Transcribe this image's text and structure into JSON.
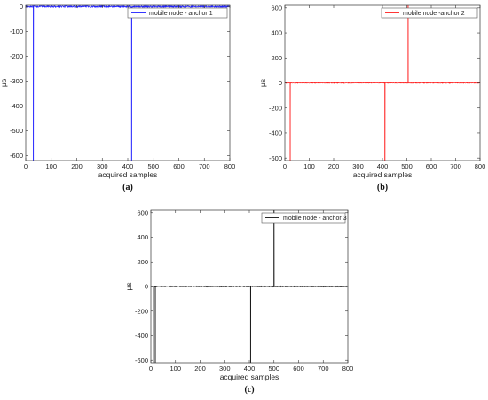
{
  "chart_data": [
    {
      "type": "line",
      "caption": "(a)",
      "xlabel": "acquired samples",
      "ylabel": "μs",
      "xlim": [
        0,
        800
      ],
      "ylim": [
        -620,
        5
      ],
      "xticks": [
        0,
        100,
        200,
        300,
        400,
        500,
        600,
        700,
        800
      ],
      "yticks": [
        0,
        -100,
        -200,
        -300,
        -400,
        -500,
        -600
      ],
      "legend_position": "top-right",
      "grid": false,
      "series": [
        {
          "name": "mobile node - anchor 1",
          "color": "#2020ff",
          "baseline": 0,
          "noise_amplitude": 3,
          "spikes": [
            {
              "x": 30,
              "y": -620
            },
            {
              "x": 415,
              "y": -620
            }
          ]
        }
      ]
    },
    {
      "type": "line",
      "caption": "(b)",
      "xlabel": "acquired samples",
      "ylabel": "μs",
      "xlim": [
        0,
        800
      ],
      "ylim": [
        -620,
        620
      ],
      "xticks": [
        0,
        100,
        200,
        300,
        400,
        500,
        600,
        700,
        800
      ],
      "yticks": [
        600,
        400,
        200,
        0,
        -200,
        -400,
        -600
      ],
      "legend_position": "top-right",
      "grid": false,
      "series": [
        {
          "name": "mobile node -anchor 2",
          "color": "#ff2020",
          "baseline": 0,
          "noise_amplitude": 3,
          "spikes": [
            {
              "x": 22,
              "y": -620
            },
            {
              "x": 410,
              "y": -620
            },
            {
              "x": 505,
              "y": 620
            }
          ]
        }
      ]
    },
    {
      "type": "line",
      "caption": "(c)",
      "xlabel": "acquired samples",
      "ylabel": "μs",
      "xlim": [
        0,
        800
      ],
      "ylim": [
        -620,
        620
      ],
      "xticks": [
        0,
        100,
        200,
        300,
        400,
        500,
        600,
        700,
        800
      ],
      "yticks": [
        600,
        400,
        200,
        0,
        -200,
        -400,
        -600
      ],
      "legend_position": "top-right",
      "grid": false,
      "series": [
        {
          "name": "mobile node - anchor 3",
          "color": "#111111",
          "baseline": 0,
          "noise_amplitude": 3,
          "spikes": [
            {
              "x": 10,
              "y": -620
            },
            {
              "x": 18,
              "y": -620
            },
            {
              "x": 405,
              "y": -620
            },
            {
              "x": 500,
              "y": 620
            }
          ]
        }
      ]
    }
  ]
}
